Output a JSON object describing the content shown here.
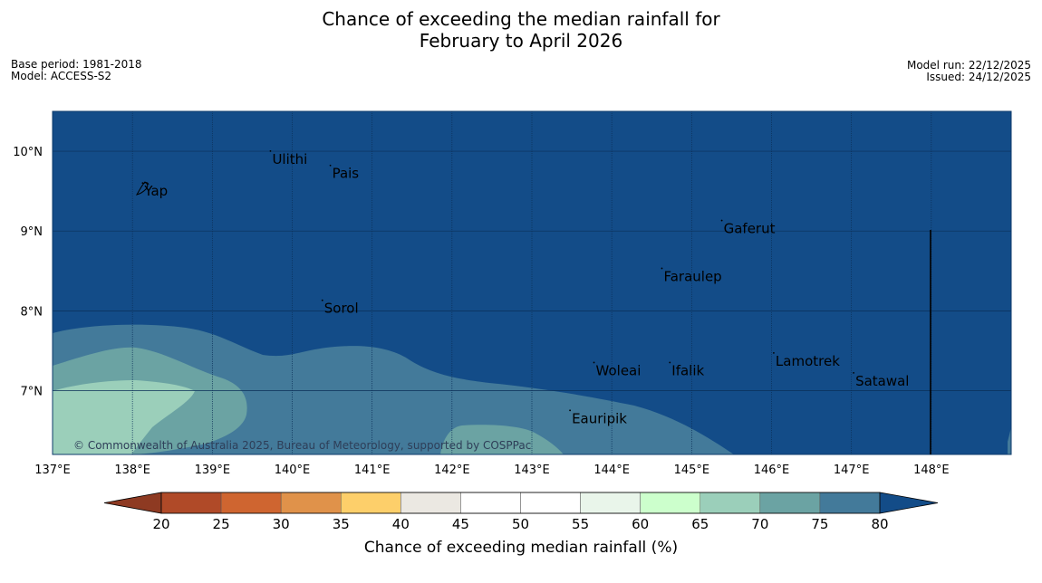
{
  "title": {
    "line1": "Chance of exceeding the median rainfall for",
    "line2": "February to April 2026"
  },
  "meta_left": {
    "base_period": "Base period: 1981-2018",
    "model": "Model: ACCESS-S2"
  },
  "meta_right": {
    "model_run": "Model run: 22/12/2025",
    "issued": "Issued: 24/12/2025"
  },
  "map": {
    "lon_range": [
      137,
      149
    ],
    "lat_range": [
      6.2,
      10.5
    ],
    "lon_ticks": [
      "137°E",
      "138°E",
      "139°E",
      "140°E",
      "141°E",
      "142°E",
      "143°E",
      "144°E",
      "145°E",
      "146°E",
      "147°E",
      "148°E"
    ],
    "lat_ticks": [
      "7°N",
      "8°N",
      "9°N",
      "10°N"
    ],
    "background_category": "75-80+",
    "places": [
      {
        "name": "Ulithi",
        "lon": 139.75,
        "lat": 9.9
      },
      {
        "name": "Pais",
        "lon": 140.5,
        "lat": 9.72
      },
      {
        "name": "Yap",
        "lon": 138.15,
        "lat": 9.5
      },
      {
        "name": "Gaferut",
        "lon": 145.4,
        "lat": 9.03
      },
      {
        "name": "Faraulep",
        "lon": 144.65,
        "lat": 8.43
      },
      {
        "name": "Sorol",
        "lon": 140.4,
        "lat": 8.03
      },
      {
        "name": "Lamotrek",
        "lon": 146.05,
        "lat": 7.37
      },
      {
        "name": "Woleai",
        "lon": 143.8,
        "lat": 7.25
      },
      {
        "name": "Ifalik",
        "lon": 144.75,
        "lat": 7.25
      },
      {
        "name": "Satawal",
        "lon": 147.05,
        "lat": 7.12
      },
      {
        "name": "Eauripik",
        "lon": 143.5,
        "lat": 6.65
      }
    ],
    "copyright": "© Commonwealth of Australia 2025, Bureau of Meteorology, supported by COSPPac"
  },
  "colorbar": {
    "label": "Chance of exceeding median rainfall (%)",
    "ticks": [
      "20",
      "25",
      "30",
      "35",
      "40",
      "45",
      "50",
      "55",
      "60",
      "65",
      "70",
      "75",
      "80"
    ],
    "colors": [
      "#b04a28",
      "#cf6530",
      "#e0924a",
      "#fdcf6a",
      "#ebe8e2",
      "#ffffff",
      "#ffffff",
      "#e9f5ea",
      "#ccffcc",
      "#9bcfba",
      "#6ba3a3",
      "#437a9a"
    ],
    "under_color": "#8e3a22",
    "over_color": "#134c88"
  },
  "colors": {
    "c80": "#134c88",
    "c75": "#437a9a",
    "c70": "#6ba3a3",
    "c65": "#9bcfba"
  }
}
